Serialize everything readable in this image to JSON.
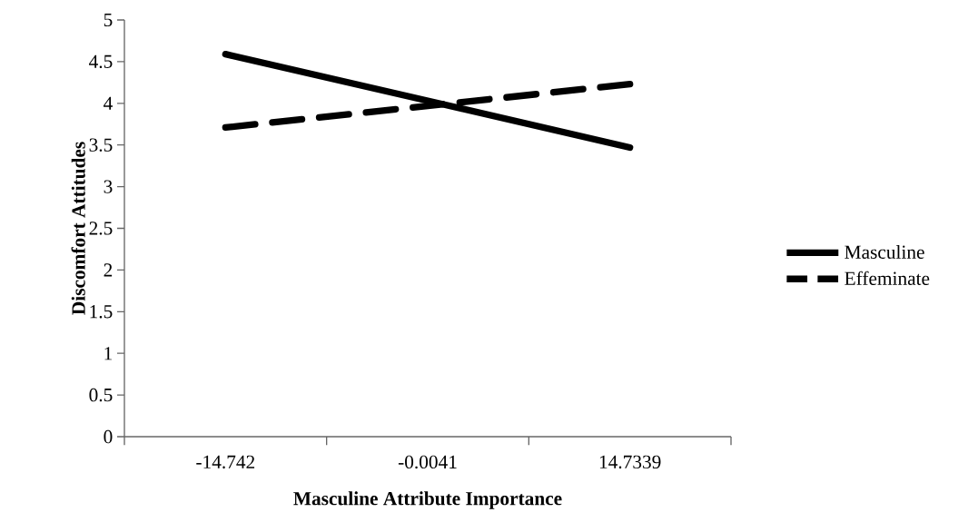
{
  "chart_data": {
    "type": "line",
    "xlabel": "Masculine Attribute Importance",
    "ylabel": "Discomfort Attitudes",
    "categories": [
      "-14.742",
      "-0.0041",
      "14.7339"
    ],
    "series": [
      {
        "name": "Masculine",
        "color": "#000000",
        "line_style": "solid",
        "values": [
          4.59,
          4.03,
          3.47
        ]
      },
      {
        "name": "Effeminate",
        "color": "#000000",
        "line_style": "dashed",
        "values": [
          3.71,
          3.97,
          4.23
        ]
      }
    ],
    "ylim": [
      0,
      5
    ],
    "yticks": [
      0,
      0.5,
      1,
      1.5,
      2,
      2.5,
      3,
      3.5,
      4,
      4.5,
      5
    ],
    "grid": false,
    "legend": "right",
    "marker": "none"
  }
}
